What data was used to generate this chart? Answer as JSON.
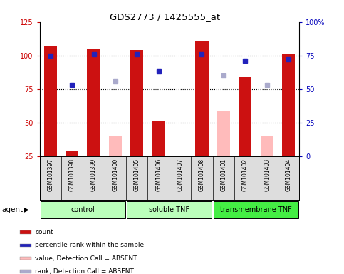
{
  "title": "GDS2773 / 1425555_at",
  "samples": [
    "GSM101397",
    "GSM101398",
    "GSM101399",
    "GSM101400",
    "GSM101405",
    "GSM101406",
    "GSM101407",
    "GSM101408",
    "GSM101401",
    "GSM101402",
    "GSM101403",
    "GSM101404"
  ],
  "groups": [
    {
      "label": "control",
      "start": 0,
      "end": 4
    },
    {
      "label": "soluble TNF",
      "start": 4,
      "end": 8
    },
    {
      "label": "transmembrane TNF",
      "start": 8,
      "end": 12
    }
  ],
  "group_colors": [
    "#bbffbb",
    "#bbffbb",
    "#44ee44"
  ],
  "red_bars": [
    107,
    29,
    105,
    null,
    104,
    51,
    null,
    111,
    null,
    84,
    null,
    101
  ],
  "pink_bars": [
    null,
    null,
    null,
    40,
    null,
    null,
    null,
    null,
    59,
    null,
    40,
    null
  ],
  "blue_squares": [
    75,
    53,
    76,
    null,
    76,
    63,
    null,
    76,
    null,
    71,
    null,
    72
  ],
  "lavender_squares": [
    null,
    null,
    null,
    56,
    null,
    null,
    null,
    null,
    60,
    null,
    53,
    null
  ],
  "ylim_left": [
    25,
    125
  ],
  "ylim_right": [
    0,
    100
  ],
  "yticks_left": [
    25,
    50,
    75,
    100,
    125
  ],
  "ytick_labels_left": [
    "25",
    "50",
    "75",
    "100",
    "125"
  ],
  "yticks_right": [
    0,
    25,
    50,
    75,
    100
  ],
  "ytick_labels_right": [
    "0",
    "25",
    "50",
    "75",
    "100%"
  ],
  "hlines": [
    50,
    75,
    100
  ],
  "red_color": "#cc1111",
  "pink_color": "#ffbbbb",
  "blue_color": "#2222bb",
  "lavender_color": "#aaaacc",
  "legend_items": [
    {
      "color": "#cc1111",
      "label": "count"
    },
    {
      "color": "#2222bb",
      "label": "percentile rank within the sample"
    },
    {
      "color": "#ffbbbb",
      "label": "value, Detection Call = ABSENT"
    },
    {
      "color": "#aaaacc",
      "label": "rank, Detection Call = ABSENT"
    }
  ]
}
